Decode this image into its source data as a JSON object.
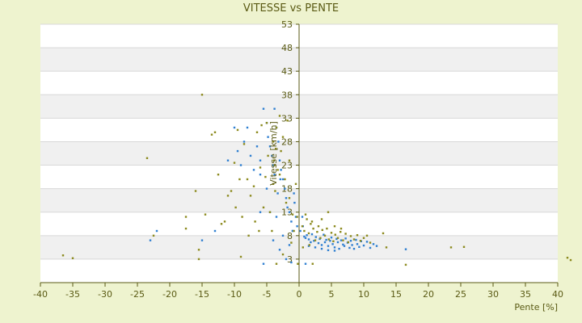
{
  "chart_data": {
    "type": "scatter",
    "title": "VITESSE vs PENTE",
    "xlabel": "Pente [%]",
    "ylabel": "Vitesse [km/h]",
    "xlim": [
      -40,
      40
    ],
    "ylim": [
      -2,
      53
    ],
    "x_ticks": [
      -40,
      -35,
      -30,
      -25,
      -20,
      -15,
      -10,
      -5,
      0,
      5,
      10,
      15,
      20,
      25,
      30,
      35,
      40
    ],
    "y_ticks": [
      3,
      8,
      13,
      18,
      23,
      28,
      33,
      38,
      43,
      48,
      53
    ],
    "grid": true,
    "legend": "none",
    "colors": {
      "background": "#eef3cf",
      "band_light": "#ffffff",
      "band_dark": "#f0f0f0",
      "axis": "#5a5a14",
      "series_blue": "#2f7fd1",
      "series_olive": "#8c8a1e"
    },
    "series": [
      {
        "color": "#2f7fd1",
        "points": [
          [
            -22,
            9
          ],
          [
            -23,
            7
          ],
          [
            -15,
            7
          ],
          [
            -13,
            9
          ],
          [
            -11,
            24
          ],
          [
            -10,
            31
          ],
          [
            -9.5,
            26
          ],
          [
            -9,
            23
          ],
          [
            -8.5,
            28
          ],
          [
            -8,
            31
          ],
          [
            -7.5,
            25
          ],
          [
            -7,
            22
          ],
          [
            -6.5,
            27
          ],
          [
            -6,
            24
          ],
          [
            -5.5,
            35
          ],
          [
            -5,
            32
          ],
          [
            -4.8,
            29
          ],
          [
            -4.5,
            27
          ],
          [
            -4.2,
            25
          ],
          [
            -4,
            23
          ],
          [
            -3.8,
            35
          ],
          [
            -3.5,
            31
          ],
          [
            -3.2,
            28
          ],
          [
            -3,
            24
          ],
          [
            -2.8,
            22
          ],
          [
            -2.5,
            20
          ],
          [
            -2.2,
            18
          ],
          [
            -2,
            16
          ],
          [
            -1.8,
            14
          ],
          [
            -1.5,
            13
          ],
          [
            -1.2,
            11
          ],
          [
            -1,
            9
          ],
          [
            -0.8,
            17
          ],
          [
            -0.5,
            12
          ],
          [
            -0.3,
            10
          ],
          [
            -6,
            21
          ],
          [
            -5,
            18
          ],
          [
            -4.5,
            13
          ],
          [
            -3.5,
            12
          ],
          [
            -6,
            13
          ],
          [
            -5.5,
            2
          ],
          [
            -3,
            5
          ],
          [
            -2,
            3
          ],
          [
            -1,
            9
          ],
          [
            -2.5,
            8
          ],
          [
            -1.5,
            6
          ],
          [
            -4,
            7
          ],
          [
            -3.8,
            21
          ],
          [
            -2.9,
            20
          ],
          [
            -3.3,
            17
          ],
          [
            0.5,
            12
          ],
          [
            0.8,
            7.8
          ],
          [
            1,
            7.5
          ],
          [
            1.2,
            8.1
          ],
          [
            1.5,
            7.2
          ],
          [
            1.8,
            6.6
          ],
          [
            2,
            8.3
          ],
          [
            2.3,
            6.9
          ],
          [
            2.6,
            7.7
          ],
          [
            3,
            6.4
          ],
          [
            3.2,
            7.3
          ],
          [
            3.5,
            6.0
          ],
          [
            3.8,
            8.2
          ],
          [
            4,
            6.6
          ],
          [
            4.2,
            7.1
          ],
          [
            4.5,
            5.8
          ],
          [
            4.8,
            6.9
          ],
          [
            5,
            7.6
          ],
          [
            5.2,
            6.2
          ],
          [
            5.5,
            5.5
          ],
          [
            5.8,
            7.3
          ],
          [
            6,
            6.6
          ],
          [
            6.2,
            5.2
          ],
          [
            6.5,
            7.0
          ],
          [
            6.8,
            6.1
          ],
          [
            7,
            5.8
          ],
          [
            7.2,
            7.4
          ],
          [
            7.5,
            6.5
          ],
          [
            7.8,
            5.4
          ],
          [
            8,
            6.9
          ],
          [
            8.2,
            6.0
          ],
          [
            8.5,
            5.2
          ],
          [
            8.8,
            7.1
          ],
          [
            9,
            6.2
          ],
          [
            9.3,
            5.6
          ],
          [
            9.6,
            6.8
          ],
          [
            10,
            5.9
          ],
          [
            10.5,
            6.7
          ],
          [
            11,
            5.4
          ],
          [
            11.5,
            6.2
          ],
          [
            12,
            5.8
          ],
          [
            16.5,
            5.1
          ],
          [
            1.5,
            5.8
          ],
          [
            2.5,
            5.5
          ],
          [
            3.5,
            5.2
          ],
          [
            4.5,
            4.9
          ],
          [
            5.5,
            4.8
          ],
          [
            0.2,
            9
          ],
          [
            1,
            2
          ],
          [
            0.6,
            10
          ],
          [
            -1.2,
            2.3
          ],
          [
            -0.7,
            15
          ]
        ]
      },
      {
        "color": "#8c8a1e",
        "points": [
          [
            -36.5,
            3.8
          ],
          [
            -35,
            3.2
          ],
          [
            -23.5,
            24.5
          ],
          [
            -22.5,
            8.0
          ],
          [
            -17.5,
            12.0
          ],
          [
            -17.5,
            9.5
          ],
          [
            -16,
            17.5
          ],
          [
            -15.5,
            3.0
          ],
          [
            -15.5,
            5.0
          ],
          [
            -15,
            38.0
          ],
          [
            -14.5,
            12.5
          ],
          [
            -13.5,
            29.5
          ],
          [
            -13,
            30.0
          ],
          [
            -12.5,
            21.0
          ],
          [
            -12,
            10.5
          ],
          [
            -11.5,
            11.0
          ],
          [
            -11,
            16.5
          ],
          [
            -10.5,
            17.5
          ],
          [
            -10,
            23.5
          ],
          [
            -9.8,
            14.0
          ],
          [
            -9.5,
            30.5
          ],
          [
            -9.2,
            20.0
          ],
          [
            -9,
            3.5
          ],
          [
            -8.8,
            12.0
          ],
          [
            -8.5,
            27.5
          ],
          [
            -8,
            20.0
          ],
          [
            -7.8,
            8.0
          ],
          [
            -7.5,
            16.5
          ],
          [
            -7,
            18.5
          ],
          [
            -6.8,
            11.0
          ],
          [
            -6.5,
            30.0
          ],
          [
            -6.2,
            9.0
          ],
          [
            -6,
            22.5
          ],
          [
            -5.8,
            31.5
          ],
          [
            -5.5,
            14.0
          ],
          [
            -5.2,
            20.5
          ],
          [
            -5,
            32.0
          ],
          [
            -4.8,
            25.0
          ],
          [
            -4.5,
            13.0
          ],
          [
            -4.2,
            9.0
          ],
          [
            -4,
            28.0
          ],
          [
            -3.8,
            23.0
          ],
          [
            -3.5,
            31.0
          ],
          [
            -3.3,
            22.0
          ],
          [
            -3,
            33.5
          ],
          [
            -2.8,
            26.0
          ],
          [
            -2.5,
            29.0
          ],
          [
            -2.2,
            20.0
          ],
          [
            -2,
            15.0
          ],
          [
            -1.8,
            32.5
          ],
          [
            -1.5,
            24.0
          ],
          [
            -1.2,
            6.5
          ],
          [
            -1,
            12.5
          ],
          [
            -0.8,
            9.0
          ],
          [
            -0.5,
            19.0
          ],
          [
            -0.3,
            12.0
          ],
          [
            -3.5,
            2.0
          ],
          [
            -2.5,
            4.0
          ],
          [
            -1.5,
            16.0
          ],
          [
            -4,
            19.0
          ],
          [
            -3,
            21.0
          ],
          [
            -3.9,
            24.0
          ],
          [
            -3.6,
            26.5
          ],
          [
            -3.7,
            17.5
          ],
          [
            -0.2,
            2.0
          ],
          [
            0.5,
            10.0
          ],
          [
            0.8,
            9.0
          ],
          [
            1.2,
            11.5
          ],
          [
            1.5,
            8.5
          ],
          [
            1.8,
            10.5
          ],
          [
            2.2,
            9.5
          ],
          [
            2.5,
            7.0
          ],
          [
            2.8,
            8.8
          ],
          [
            3,
            10.0
          ],
          [
            3.3,
            7.5
          ],
          [
            3.6,
            9.2
          ],
          [
            4,
            8.0
          ],
          [
            4.3,
            9.5
          ],
          [
            4.6,
            7.2
          ],
          [
            5,
            8.6
          ],
          [
            5.3,
            6.8
          ],
          [
            5.6,
            8.2
          ],
          [
            6,
            7.5
          ],
          [
            6.4,
            8.8
          ],
          [
            6.8,
            7.0
          ],
          [
            7.2,
            8.4
          ],
          [
            7.6,
            6.6
          ],
          [
            8,
            7.9
          ],
          [
            8.5,
            7.2
          ],
          [
            9,
            8.1
          ],
          [
            9.5,
            6.9
          ],
          [
            10,
            7.5
          ],
          [
            10.5,
            8.0
          ],
          [
            11,
            6.5
          ],
          [
            13,
            8.5
          ],
          [
            13.5,
            5.5
          ],
          [
            16.5,
            1.8
          ],
          [
            23.5,
            5.5
          ],
          [
            25.5,
            5.6
          ],
          [
            41.5,
            3.3
          ],
          [
            42,
            2.8
          ],
          [
            1,
            12.5
          ],
          [
            2,
            11.0
          ],
          [
            3.5,
            11.5
          ],
          [
            4.5,
            13.0
          ],
          [
            5.5,
            10.0
          ],
          [
            6.5,
            9.5
          ],
          [
            1.6,
            6.0
          ],
          [
            2.1,
            2.0
          ],
          [
            0.6,
            5.5
          ]
        ]
      }
    ]
  }
}
